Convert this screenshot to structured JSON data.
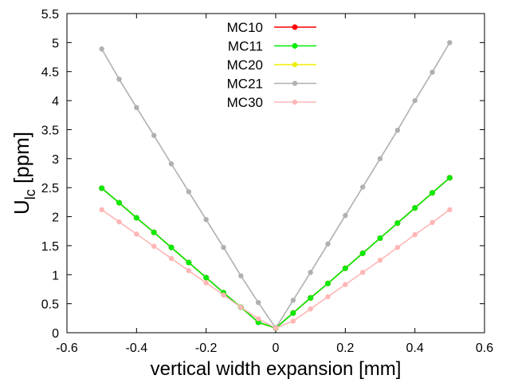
{
  "chart_data": {
    "type": "line",
    "xlabel": "vertical width expansion [mm]",
    "ylabel": {
      "main": "U",
      "sub": "lc",
      "unit": " [ppm]"
    },
    "xlim": [
      -0.6,
      0.6
    ],
    "ylim": [
      0,
      5.5
    ],
    "xticks": [
      "-0.6",
      "-0.4",
      "-0.2",
      "0",
      "0.2",
      "0.4",
      "0.6"
    ],
    "yticks": [
      "0",
      "0.5",
      "1",
      "1.5",
      "2",
      "2.5",
      "3",
      "3.5",
      "4",
      "4.5",
      "5",
      "5.5"
    ],
    "grid": false,
    "legend_position": "top-center",
    "x": [
      -0.5,
      -0.45,
      -0.4,
      -0.35,
      -0.3,
      -0.25,
      -0.2,
      -0.15,
      -0.1,
      -0.05,
      0,
      0.05,
      0.1,
      0.15,
      0.2,
      0.25,
      0.3,
      0.35,
      0.4,
      0.45,
      0.5
    ],
    "series": [
      {
        "name": "MC10",
        "color": "#ff0000",
        "marker": "cross",
        "values": [
          2.49,
          2.24,
          1.98,
          1.73,
          1.47,
          1.21,
          0.95,
          0.69,
          0.44,
          0.18,
          0.08,
          0.34,
          0.6,
          0.85,
          1.11,
          1.37,
          1.63,
          1.89,
          2.15,
          2.41,
          2.67
        ]
      },
      {
        "name": "MC11",
        "color": "#00ee00",
        "marker": "cross",
        "values": [
          2.49,
          2.24,
          1.98,
          1.73,
          1.47,
          1.21,
          0.95,
          0.69,
          0.44,
          0.18,
          0.08,
          0.34,
          0.6,
          0.85,
          1.11,
          1.37,
          1.63,
          1.89,
          2.15,
          2.41,
          2.67
        ]
      },
      {
        "name": "MC20",
        "color": "#eeee00",
        "marker": "dot",
        "values": [
          2.49,
          2.24,
          1.98,
          1.73,
          1.47,
          1.21,
          0.95,
          0.69,
          0.44,
          0.18,
          0.08,
          0.34,
          0.6,
          0.85,
          1.11,
          1.37,
          1.63,
          1.89,
          2.15,
          2.41,
          2.67
        ]
      },
      {
        "name": "MC21",
        "color": "#b0b0b0",
        "marker": "dot",
        "values": [
          4.89,
          4.37,
          3.88,
          3.4,
          2.91,
          2.43,
          1.95,
          1.47,
          0.98,
          0.52,
          0.08,
          0.56,
          1.04,
          1.53,
          2.02,
          2.51,
          3.0,
          3.49,
          4.0,
          4.49,
          5.0
        ]
      },
      {
        "name": "MC30",
        "color": "#ffb6b6",
        "marker": "dot",
        "values": [
          2.12,
          1.91,
          1.7,
          1.49,
          1.28,
          1.07,
          0.86,
          0.65,
          0.44,
          0.24,
          0.08,
          0.2,
          0.41,
          0.62,
          0.83,
          1.04,
          1.25,
          1.47,
          1.69,
          1.9,
          2.12
        ]
      }
    ]
  }
}
